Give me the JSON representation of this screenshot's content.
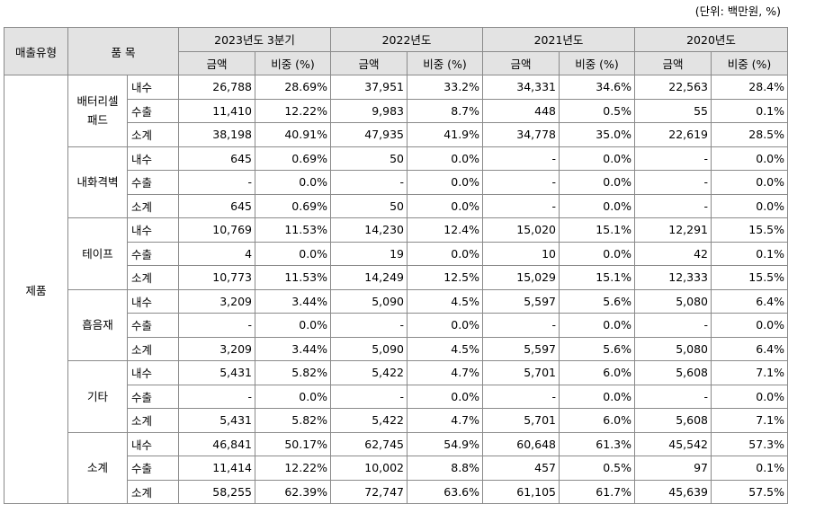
{
  "unit_note": "(단위: 백만원, %)",
  "headers": {
    "sales_type": "매출유형",
    "item": "품 목",
    "periods": [
      "2023년도 3분기",
      "2022년도",
      "2021년도",
      "2020년도"
    ],
    "amount": "금액",
    "ratio": "비중 (%)"
  },
  "sales_type_value": "제품",
  "groups": [
    {
      "name": "배터리셀\n패드",
      "rows": [
        {
          "sub": "내수",
          "vals": [
            "26,788",
            "28.69%",
            "37,951",
            "33.2%",
            "34,331",
            "34.6%",
            "22,563",
            "28.4%"
          ]
        },
        {
          "sub": "수출",
          "vals": [
            "11,410",
            "12.22%",
            "9,983",
            "8.7%",
            "448",
            "0.5%",
            "55",
            "0.1%"
          ]
        },
        {
          "sub": "소계",
          "vals": [
            "38,198",
            "40.91%",
            "47,935",
            "41.9%",
            "34,778",
            "35.0%",
            "22,619",
            "28.5%"
          ]
        }
      ]
    },
    {
      "name": "내화격벽",
      "rows": [
        {
          "sub": "내수",
          "vals": [
            "645",
            "0.69%",
            "50",
            "0.0%",
            "-",
            "0.0%",
            "-",
            "0.0%"
          ]
        },
        {
          "sub": "수출",
          "vals": [
            "-",
            "0.0%",
            "-",
            "0.0%",
            "-",
            "0.0%",
            "-",
            "0.0%"
          ]
        },
        {
          "sub": "소계",
          "vals": [
            "645",
            "0.69%",
            "50",
            "0.0%",
            "-",
            "0.0%",
            "-",
            "0.0%"
          ]
        }
      ]
    },
    {
      "name": "테이프",
      "rows": [
        {
          "sub": "내수",
          "vals": [
            "10,769",
            "11.53%",
            "14,230",
            "12.4%",
            "15,020",
            "15.1%",
            "12,291",
            "15.5%"
          ]
        },
        {
          "sub": "수출",
          "vals": [
            "4",
            "0.0%",
            "19",
            "0.0%",
            "10",
            "0.0%",
            "42",
            "0.1%"
          ]
        },
        {
          "sub": "소계",
          "vals": [
            "10,773",
            "11.53%",
            "14,249",
            "12.5%",
            "15,029",
            "15.1%",
            "12,333",
            "15.5%"
          ]
        }
      ]
    },
    {
      "name": "흡음재",
      "rows": [
        {
          "sub": "내수",
          "vals": [
            "3,209",
            "3.44%",
            "5,090",
            "4.5%",
            "5,597",
            "5.6%",
            "5,080",
            "6.4%"
          ]
        },
        {
          "sub": "수출",
          "vals": [
            "-",
            "0.0%",
            "-",
            "0.0%",
            "-",
            "0.0%",
            "-",
            "0.0%"
          ]
        },
        {
          "sub": "소계",
          "vals": [
            "3,209",
            "3.44%",
            "5,090",
            "4.5%",
            "5,597",
            "5.6%",
            "5,080",
            "6.4%"
          ]
        }
      ]
    },
    {
      "name": "기타",
      "rows": [
        {
          "sub": "내수",
          "vals": [
            "5,431",
            "5.82%",
            "5,422",
            "4.7%",
            "5,701",
            "6.0%",
            "5,608",
            "7.1%"
          ]
        },
        {
          "sub": "수출",
          "vals": [
            "-",
            "0.0%",
            "-",
            "0.0%",
            "-",
            "0.0%",
            "-",
            "0.0%"
          ]
        },
        {
          "sub": "소계",
          "vals": [
            "5,431",
            "5.82%",
            "5,422",
            "4.7%",
            "5,701",
            "6.0%",
            "5,608",
            "7.1%"
          ]
        }
      ]
    },
    {
      "name": "소계",
      "rows": [
        {
          "sub": "내수",
          "vals": [
            "46,841",
            "50.17%",
            "62,745",
            "54.9%",
            "60,648",
            "61.3%",
            "45,542",
            "57.3%"
          ]
        },
        {
          "sub": "수출",
          "vals": [
            "11,414",
            "12.22%",
            "10,002",
            "8.8%",
            "457",
            "0.5%",
            "97",
            "0.1%"
          ]
        },
        {
          "sub": "소계",
          "vals": [
            "58,255",
            "62.39%",
            "72,747",
            "63.6%",
            "61,105",
            "61.7%",
            "45,639",
            "57.5%"
          ]
        }
      ]
    }
  ]
}
